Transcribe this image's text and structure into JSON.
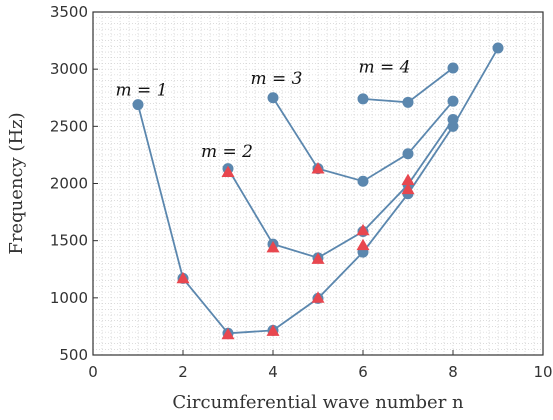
{
  "chart_data": {
    "type": "scatter",
    "xlabel": "Circumferential wave number n",
    "ylabel": "Frequency (Hz)",
    "xlim": [
      0,
      10
    ],
    "ylim": [
      500,
      3500
    ],
    "xticks": [
      0,
      2,
      4,
      6,
      8,
      10
    ],
    "yticks": [
      500,
      1000,
      1500,
      2000,
      2500,
      3000,
      3500
    ],
    "grid": "minor",
    "colors": {
      "line": "#5b87ae",
      "circle": "#5b87ae",
      "triangle": "#e8474f"
    },
    "series": [
      {
        "marker": "circle-line",
        "x": [
          1,
          2,
          3,
          4,
          5,
          6,
          7,
          8,
          9
        ],
        "y": [
          2690,
          1170,
          690,
          715,
          995,
          1400,
          1910,
          2500,
          3185
        ]
      },
      {
        "marker": "circle-line",
        "x": [
          3,
          4,
          5,
          6,
          7,
          8
        ],
        "y": [
          2130,
          1470,
          1350,
          1580,
          1990,
          2560
        ]
      },
      {
        "marker": "circle-line",
        "x": [
          4,
          5,
          6,
          7,
          8
        ],
        "y": [
          2750,
          2130,
          2020,
          2260,
          2720
        ]
      },
      {
        "marker": "circle-line",
        "x": [
          6,
          7,
          8
        ],
        "y": [
          2740,
          2710,
          3010
        ]
      },
      {
        "marker": "triangle",
        "x": [
          2,
          3,
          4,
          5,
          6,
          7,
          3,
          4,
          5,
          6,
          7,
          5
        ],
        "y": [
          1170,
          680,
          710,
          1000,
          1460,
          1950,
          2100,
          1440,
          1340,
          1590,
          2030,
          2130
        ]
      }
    ],
    "annotations": [
      {
        "text": "m = 1",
        "x": 0.5,
        "y": 2770
      },
      {
        "text": "m = 2",
        "x": 2.4,
        "y": 2230
      },
      {
        "text": "m = 3",
        "x": 3.5,
        "y": 2870
      },
      {
        "text": "m = 4",
        "x": 5.9,
        "y": 2970
      }
    ]
  }
}
